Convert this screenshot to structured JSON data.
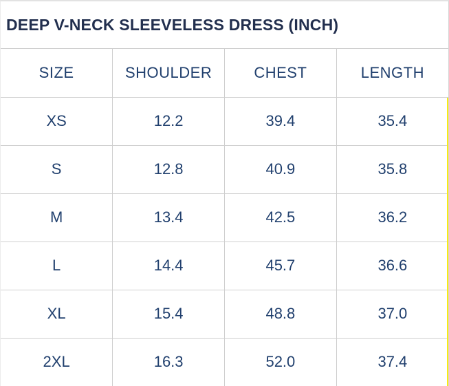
{
  "title": "DEEP V-NECK SLEEVELESS DRESS (INCH)",
  "unit": "INCH",
  "table": {
    "headers": [
      "SIZE",
      "SHOULDER",
      "CHEST",
      "LENGTH"
    ],
    "rows": [
      [
        "XS",
        "12.2",
        "39.4",
        "35.4"
      ],
      [
        "S",
        "12.8",
        "40.9",
        "35.8"
      ],
      [
        "M",
        "13.4",
        "42.5",
        "36.2"
      ],
      [
        "L",
        "14.4",
        "45.7",
        "36.6"
      ],
      [
        "XL",
        "15.4",
        "48.8",
        "37.0"
      ],
      [
        "2XL",
        "16.3",
        "52.0",
        "37.4"
      ]
    ]
  },
  "chart_data": {
    "type": "table",
    "title": "DEEP V-NECK SLEEVELESS DRESS (INCH)",
    "columns": [
      "SIZE",
      "SHOULDER",
      "CHEST",
      "LENGTH"
    ],
    "rows": [
      {
        "size": "XS",
        "shoulder": 12.2,
        "chest": 39.4,
        "length": 35.4
      },
      {
        "size": "S",
        "shoulder": 12.8,
        "chest": 40.9,
        "length": 35.8
      },
      {
        "size": "M",
        "shoulder": 13.4,
        "chest": 42.5,
        "length": 36.2
      },
      {
        "size": "L",
        "shoulder": 14.4,
        "chest": 45.7,
        "length": 36.6
      },
      {
        "size": "XL",
        "shoulder": 15.4,
        "chest": 48.8,
        "length": 37.0
      },
      {
        "size": "2XL",
        "shoulder": 16.3,
        "chest": 52.0,
        "length": 37.4
      }
    ]
  },
  "colors": {
    "title_text": "#222f4e",
    "cell_text": "#21406e",
    "grid_border": "#cfcfcf",
    "outer_border": "#e2e2e2",
    "highlight_strip": "#f7ec13",
    "background": "#ffffff"
  }
}
